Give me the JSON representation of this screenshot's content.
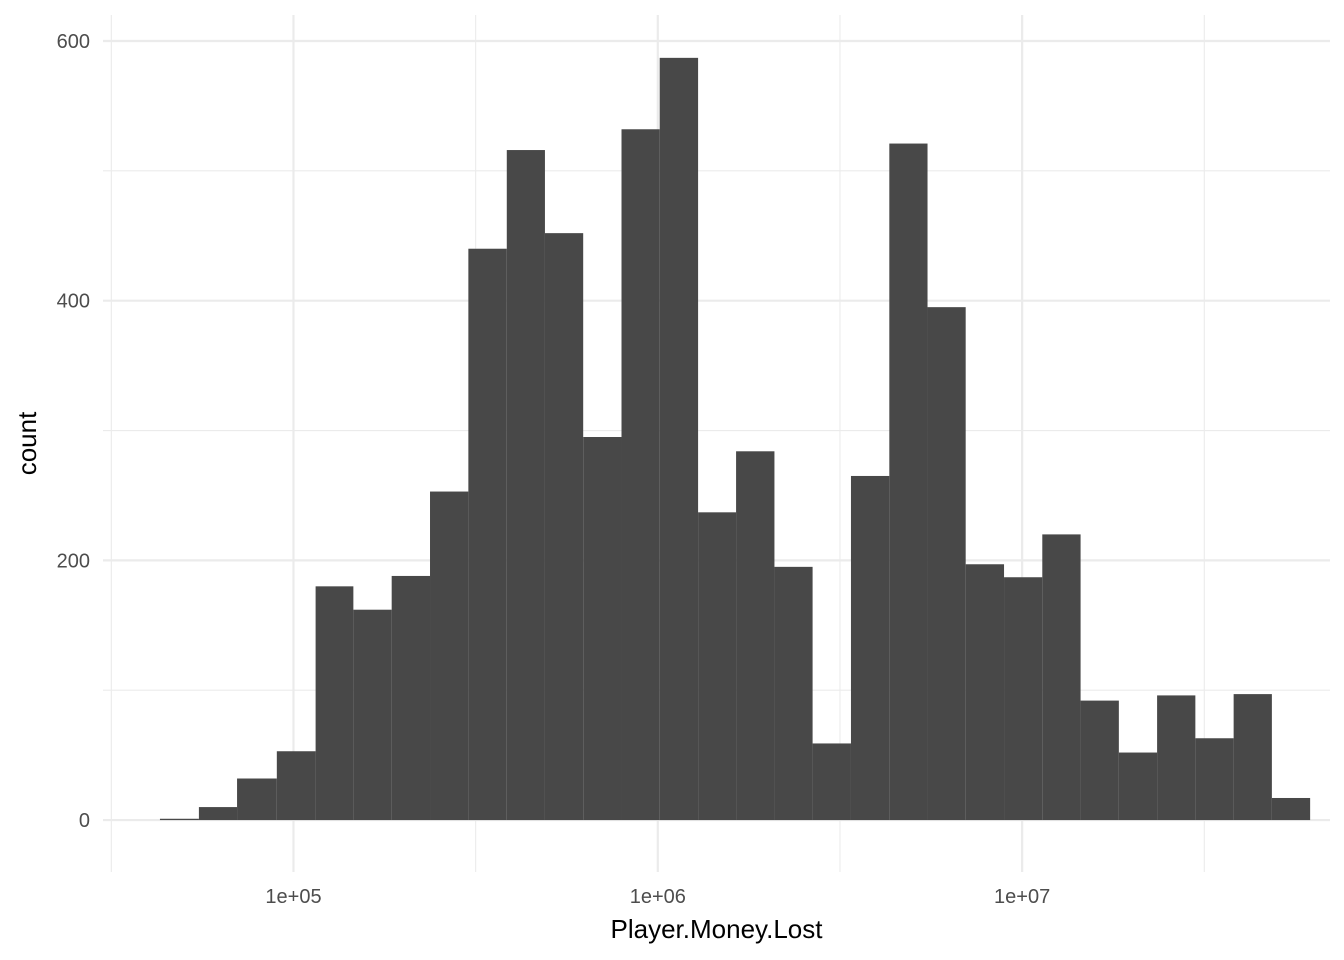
{
  "chart_data": {
    "type": "bar",
    "xlabel": "Player.Money.Lost",
    "ylabel": "count",
    "x_scale": "log10",
    "xlim": [
      30000,
      70000000
    ],
    "ylim": [
      -40,
      620
    ],
    "x_ticks": [
      {
        "value": 100000,
        "label": "1e+05"
      },
      {
        "value": 1000000,
        "label": "1e+06"
      },
      {
        "value": 10000000,
        "label": "1e+07"
      }
    ],
    "y_ticks": [
      {
        "value": 0,
        "label": "0"
      },
      {
        "value": 200,
        "label": "200"
      },
      {
        "value": 400,
        "label": "400"
      },
      {
        "value": 600,
        "label": "600"
      }
    ],
    "grid": true,
    "bar_color": "#484848",
    "grid_color": "#ebebeb",
    "bins": [
      {
        "x0": 43000,
        "x1": 55000,
        "count": 1
      },
      {
        "x0": 55000,
        "x1": 70000,
        "count": 10
      },
      {
        "x0": 70000,
        "x1": 90000,
        "count": 32
      },
      {
        "x0": 90000,
        "x1": 115000,
        "count": 53
      },
      {
        "x0": 115000,
        "x1": 146000,
        "count": 180
      },
      {
        "x0": 146000,
        "x1": 186000,
        "count": 162
      },
      {
        "x0": 186000,
        "x1": 237000,
        "count": 188
      },
      {
        "x0": 237000,
        "x1": 302000,
        "count": 253
      },
      {
        "x0": 302000,
        "x1": 385000,
        "count": 440
      },
      {
        "x0": 385000,
        "x1": 490000,
        "count": 516
      },
      {
        "x0": 490000,
        "x1": 624000,
        "count": 452
      },
      {
        "x0": 624000,
        "x1": 795000,
        "count": 295
      },
      {
        "x0": 795000,
        "x1": 1012000,
        "count": 532
      },
      {
        "x0": 1012000,
        "x1": 1290000,
        "count": 587
      },
      {
        "x0": 1290000,
        "x1": 1640000,
        "count": 237
      },
      {
        "x0": 1640000,
        "x1": 2090000,
        "count": 284
      },
      {
        "x0": 2090000,
        "x1": 2660000,
        "count": 195
      },
      {
        "x0": 2660000,
        "x1": 3390000,
        "count": 59
      },
      {
        "x0": 3390000,
        "x1": 4320000,
        "count": 265
      },
      {
        "x0": 4320000,
        "x1": 5500000,
        "count": 521
      },
      {
        "x0": 5500000,
        "x1": 7000000,
        "count": 395
      },
      {
        "x0": 7000000,
        "x1": 8920000,
        "count": 197
      },
      {
        "x0": 8920000,
        "x1": 11360000,
        "count": 187
      },
      {
        "x0": 11360000,
        "x1": 14470000,
        "count": 220
      },
      {
        "x0": 14470000,
        "x1": 18430000,
        "count": 92
      },
      {
        "x0": 18430000,
        "x1": 23470000,
        "count": 52
      },
      {
        "x0": 23470000,
        "x1": 29890000,
        "count": 96
      },
      {
        "x0": 29890000,
        "x1": 38070000,
        "count": 63
      },
      {
        "x0": 38070000,
        "x1": 48480000,
        "count": 97
      },
      {
        "x0": 48480000,
        "x1": 61740000,
        "count": 17
      }
    ]
  }
}
